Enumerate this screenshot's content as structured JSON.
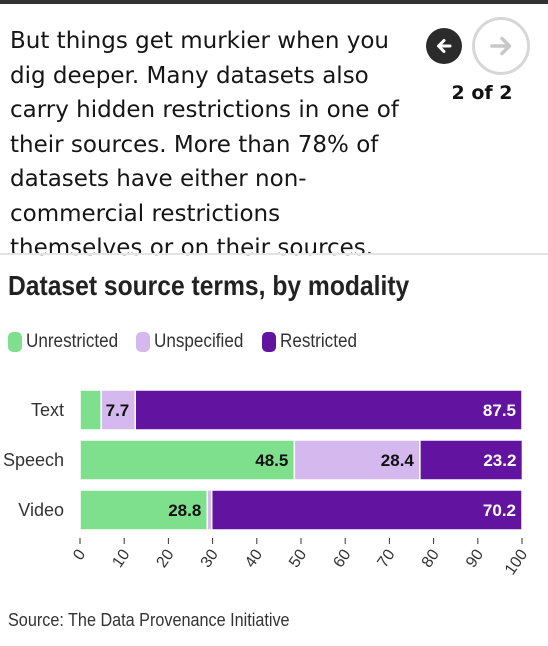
{
  "story": {
    "text": "But things get murkier when you dig deeper. Many datasets also carry hidden restrictions in one of their sources. More than 78% of datasets have either non-commercial restrictions themselves or on their sources."
  },
  "nav": {
    "counter": "2 of 2",
    "prev_icon": "arrow-left-icon",
    "next_icon": "arrow-right-icon"
  },
  "colors": {
    "unrestricted": "#7ee08c",
    "unspecified": "#d5b9ee",
    "restricted": "#6214a0"
  },
  "chart_data": {
    "type": "bar",
    "orientation": "horizontal",
    "stacked": true,
    "title": "Dataset source terms, by modality",
    "categories": [
      "Text",
      "Speech",
      "Video"
    ],
    "series": [
      {
        "name": "Unrestricted",
        "values": [
          4.8,
          48.5,
          28.8
        ],
        "labels": [
          "",
          "48.5",
          "28.8"
        ]
      },
      {
        "name": "Unspecified",
        "values": [
          7.7,
          28.4,
          1.0
        ],
        "labels": [
          "7.7",
          "28.4",
          ""
        ]
      },
      {
        "name": "Restricted",
        "values": [
          87.5,
          23.2,
          70.2
        ],
        "labels": [
          "87.5",
          "23.2",
          "70.2"
        ]
      }
    ],
    "xlim": [
      0,
      100
    ],
    "xticks": [
      "0",
      "10",
      "20",
      "30",
      "40",
      "50",
      "60",
      "70",
      "80",
      "90",
      "100"
    ],
    "legend_position": "top-left",
    "grid": false,
    "source": "Source: The Data Provenance Initiative"
  }
}
